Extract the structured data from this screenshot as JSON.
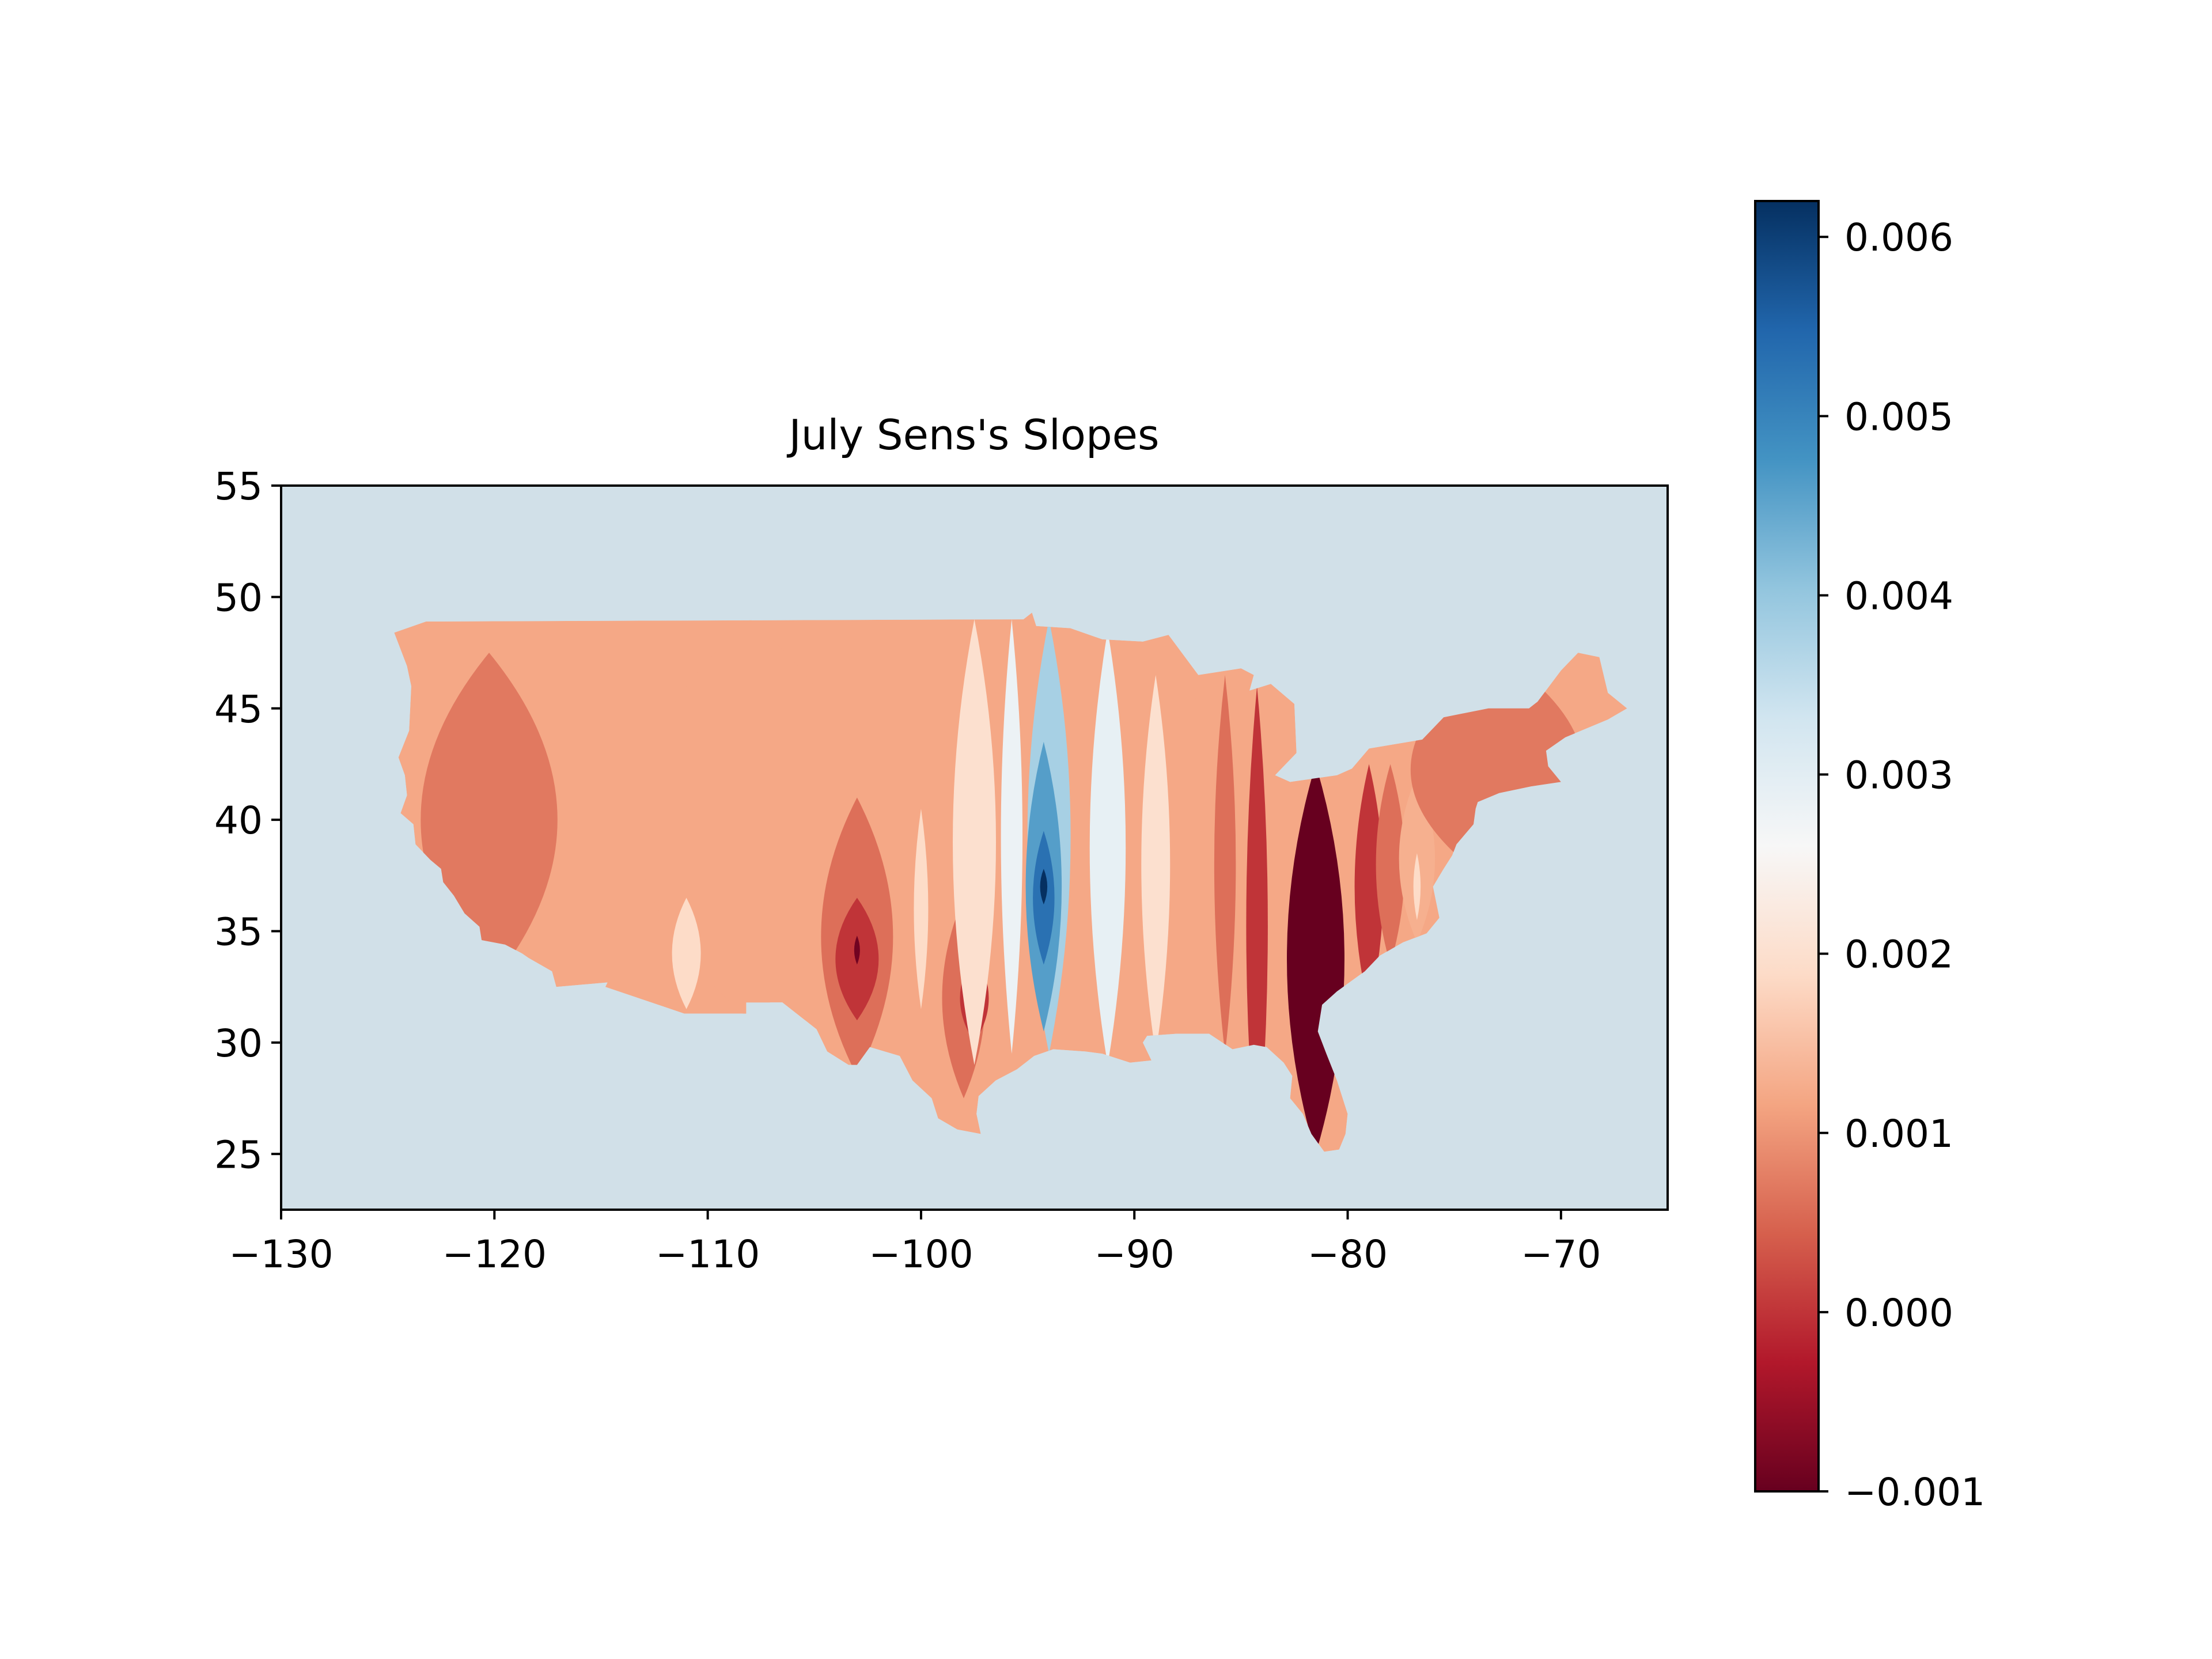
{
  "chart_data": {
    "type": "heatmap",
    "title": "July Sens's Slopes",
    "xlabel": "",
    "ylabel": "",
    "xlim": [
      -130,
      -65
    ],
    "ylim": [
      22.5,
      55
    ],
    "xticks": [
      -130,
      -120,
      -110,
      -100,
      -90,
      -80,
      -70
    ],
    "xtick_labels": [
      "−130",
      "−120",
      "−110",
      "−100",
      "−90",
      "−80",
      "−70"
    ],
    "yticks": [
      25,
      30,
      35,
      40,
      45,
      50,
      55
    ],
    "ytick_labels": [
      "25",
      "30",
      "35",
      "40",
      "45",
      "50",
      "55"
    ],
    "grid": false,
    "background_color": "#d1e0e8",
    "colormap": "RdBu",
    "colorbar": {
      "vmin": -0.001,
      "vmax": 0.0062,
      "ticks": [
        -0.001,
        0.0,
        0.001,
        0.002,
        0.003,
        0.004,
        0.005,
        0.006
      ],
      "tick_labels": [
        "−0.001",
        "0.000",
        "0.001",
        "0.002",
        "0.003",
        "0.004",
        "0.005",
        "0.006"
      ],
      "colors": [
        "#67001f",
        "#b2182b",
        "#d6604d",
        "#f4a582",
        "#fddbc7",
        "#f7f7f7",
        "#d1e5f0",
        "#92c5de",
        "#4393c3",
        "#2166ac",
        "#053061"
      ]
    },
    "contour_bands": [
      {
        "lon_range": [
          -125,
          -115.5
        ],
        "lat_range": [
          32.5,
          47.5
        ],
        "value": 0.0007
      },
      {
        "lon_range": [
          -116,
          -100
        ],
        "lat_range": [
          31,
          49
        ],
        "value": 0.0012
      },
      {
        "lon_range": [
          -112,
          -110
        ],
        "lat_range": [
          31.5,
          36.5
        ],
        "value": 0.0019
      },
      {
        "lon_range": [
          -105.5,
          -100.5
        ],
        "lat_range": [
          28.5,
          41
        ],
        "value": 0.0006
      },
      {
        "lon_range": [
          -104.5,
          -101.5
        ],
        "lat_range": [
          31,
          36.5
        ],
        "value": 0.0
      },
      {
        "lon_range": [
          -103.2,
          -102.8
        ],
        "lat_range": [
          33.5,
          34.8
        ],
        "value": -0.0009
      },
      {
        "lon_range": [
          -100.5,
          -99.5
        ],
        "lat_range": [
          31.5,
          40.5
        ],
        "value": 0.0019
      },
      {
        "lon_range": [
          -99.5,
          -96.5
        ],
        "lat_range": [
          27.5,
          36.5
        ],
        "value": 0.0006
      },
      {
        "lon_range": [
          -98.5,
          -96.5
        ],
        "lat_range": [
          30,
          34
        ],
        "value": 0.0
      },
      {
        "lon_range": [
          -99,
          -96
        ],
        "lat_range": [
          29,
          49
        ],
        "value": 0.002
      },
      {
        "lon_range": [
          -96.5,
          -95
        ],
        "lat_range": [
          29.5,
          49
        ],
        "value": 0.0028
      },
      {
        "lon_range": [
          -95.5,
          -92.5
        ],
        "lat_range": [
          29.5,
          49
        ],
        "value": 0.0038
      },
      {
        "lon_range": [
          -95.5,
          -93
        ],
        "lat_range": [
          30.5,
          43.5
        ],
        "value": 0.0046
      },
      {
        "lon_range": [
          -95,
          -93.5
        ],
        "lat_range": [
          33.5,
          39.5
        ],
        "value": 0.0053
      },
      {
        "lon_range": [
          -94.5,
          -94
        ],
        "lat_range": [
          36.2,
          37.8
        ],
        "value": 0.0062
      },
      {
        "lon_range": [
          -92.5,
          -90
        ],
        "lat_range": [
          29,
          48.5
        ],
        "value": 0.0029
      },
      {
        "lon_range": [
          -90,
          -88
        ],
        "lat_range": [
          29.5,
          46.5
        ],
        "value": 0.002
      },
      {
        "lon_range": [
          -88,
          -86.5
        ],
        "lat_range": [
          30,
          46.5
        ],
        "value": 0.0012
      },
      {
        "lon_range": [
          -86.5,
          -85
        ],
        "lat_range": [
          29.5,
          46.5
        ],
        "value": 0.0006
      },
      {
        "lon_range": [
          -85,
          -83.5
        ],
        "lat_range": [
          24.5,
          46
        ],
        "value": 0.0
      },
      {
        "lon_range": [
          -83.5,
          -79.5
        ],
        "lat_range": [
          25,
          42.5
        ],
        "value": -0.001
      },
      {
        "lon_range": [
          -80,
          -78
        ],
        "lat_range": [
          31.5,
          42.5
        ],
        "value": 0.0
      },
      {
        "lon_range": [
          -79,
          -77
        ],
        "lat_range": [
          33.5,
          42.5
        ],
        "value": 0.0006
      },
      {
        "lon_range": [
          -78,
          -75.5
        ],
        "lat_range": [
          34.5,
          42
        ],
        "value": 0.0013
      },
      {
        "lon_range": [
          -77,
          -76.5
        ],
        "lat_range": [
          35.5,
          38.5
        ],
        "value": 0.0019
      },
      {
        "lon_range": [
          -79,
          -67
        ],
        "lat_range": [
          37,
          47.5
        ],
        "value": 0.0007
      }
    ]
  }
}
